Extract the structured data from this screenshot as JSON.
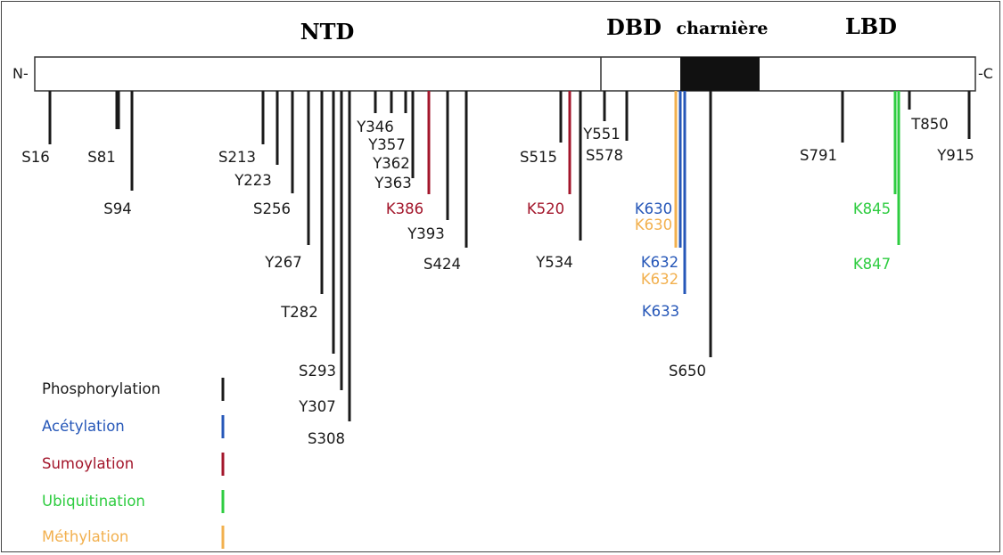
{
  "colors": {
    "phosphorylation": "#1a1a1a",
    "acetylation": "#2657b8",
    "sumoylation": "#a3162b",
    "ubiquitination": "#2ecc40",
    "methylation": "#f2b04e",
    "hinge_fill": "#111111"
  },
  "domains": {
    "ntd": "NTD",
    "dbd": "DBD",
    "hinge": "charnière",
    "lbd": "LBD"
  },
  "termini": {
    "n": "N-",
    "c": "-C"
  },
  "sites": [
    {
      "label": "S16",
      "type": "phosphorylation"
    },
    {
      "label": "S81",
      "type": "phosphorylation"
    },
    {
      "label": "S94",
      "type": "phosphorylation"
    },
    {
      "label": "S213",
      "type": "phosphorylation"
    },
    {
      "label": "Y223",
      "type": "phosphorylation"
    },
    {
      "label": "S256",
      "type": "phosphorylation"
    },
    {
      "label": "Y267",
      "type": "phosphorylation"
    },
    {
      "label": "T282",
      "type": "phosphorylation"
    },
    {
      "label": "S293",
      "type": "phosphorylation"
    },
    {
      "label": "Y307",
      "type": "phosphorylation"
    },
    {
      "label": "S308",
      "type": "phosphorylation"
    },
    {
      "label": "Y346",
      "type": "phosphorylation"
    },
    {
      "label": "Y357",
      "type": "phosphorylation"
    },
    {
      "label": "Y362",
      "type": "phosphorylation"
    },
    {
      "label": "Y363",
      "type": "phosphorylation"
    },
    {
      "label": "K386",
      "type": "sumoylation"
    },
    {
      "label": "Y393",
      "type": "phosphorylation"
    },
    {
      "label": "S424",
      "type": "phosphorylation"
    },
    {
      "label": "S515",
      "type": "phosphorylation"
    },
    {
      "label": "K520",
      "type": "sumoylation"
    },
    {
      "label": "Y534",
      "type": "phosphorylation"
    },
    {
      "label": "Y551",
      "type": "phosphorylation"
    },
    {
      "label": "S578",
      "type": "phosphorylation"
    },
    {
      "label": "K630",
      "type": "acetylation"
    },
    {
      "label": "K630",
      "type": "methylation"
    },
    {
      "label": "K632",
      "type": "acetylation"
    },
    {
      "label": "K632",
      "type": "methylation"
    },
    {
      "label": "K633",
      "type": "acetylation"
    },
    {
      "label": "S650",
      "type": "phosphorylation"
    },
    {
      "label": "S791",
      "type": "phosphorylation"
    },
    {
      "label": "K845",
      "type": "ubiquitination"
    },
    {
      "label": "K847",
      "type": "ubiquitination"
    },
    {
      "label": "T850",
      "type": "phosphorylation"
    },
    {
      "label": "Y915",
      "type": "phosphorylation"
    }
  ],
  "legend": [
    {
      "label": "Phosphorylation",
      "type": "phosphorylation"
    },
    {
      "label": "Acétylation",
      "type": "acetylation"
    },
    {
      "label": "Sumoylation",
      "type": "sumoylation"
    },
    {
      "label": "Ubiquitination",
      "type": "ubiquitination"
    },
    {
      "label": "Méthylation",
      "type": "methylation"
    }
  ]
}
